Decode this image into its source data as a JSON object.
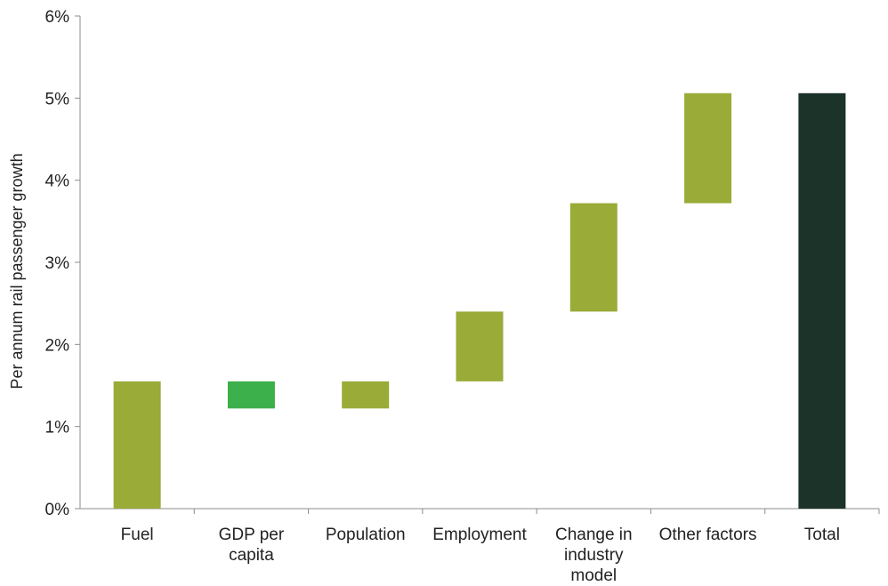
{
  "chart_data": {
    "type": "bar",
    "subtype": "waterfall",
    "ylabel": "Per annum rail passenger growth",
    "ylim": [
      0,
      6
    ],
    "y_ticks": [
      0,
      1,
      2,
      3,
      4,
      5,
      6
    ],
    "y_tick_labels": [
      "0%",
      "1%",
      "2%",
      "3%",
      "4%",
      "5%",
      "6%"
    ],
    "grid": false,
    "legend": "none",
    "categories": [
      [
        "Fuel"
      ],
      [
        "GDP per",
        "capita"
      ],
      [
        "Population"
      ],
      [
        "Employment"
      ],
      [
        "Change in",
        "industry",
        "model"
      ],
      [
        "Other factors"
      ],
      [
        "Total"
      ]
    ],
    "bars": [
      {
        "base": 0.0,
        "top": 1.55,
        "color": "#9aab38"
      },
      {
        "base": 1.22,
        "top": 1.55,
        "color": "#3cb04a"
      },
      {
        "base": 1.22,
        "top": 1.55,
        "color": "#9aab38"
      },
      {
        "base": 1.55,
        "top": 2.4,
        "color": "#9aab38"
      },
      {
        "base": 2.4,
        "top": 3.72,
        "color": "#9aab38"
      },
      {
        "base": 3.72,
        "top": 5.06,
        "color": "#9aab38"
      },
      {
        "base": 0.0,
        "top": 5.06,
        "color": "#1b3328"
      }
    ]
  }
}
